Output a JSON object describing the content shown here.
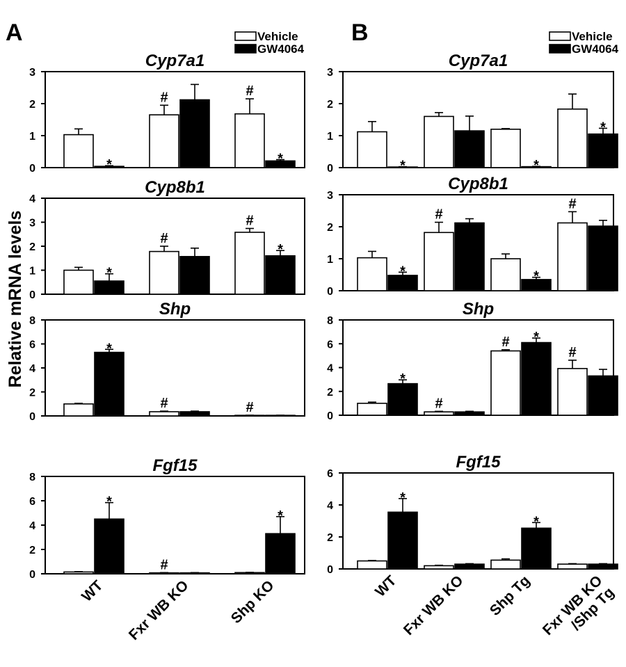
{
  "figure": {
    "ylabel": "Relative mRNA levels",
    "colors": {
      "vehicle": "#ffffff",
      "gw4064": "#000000",
      "stroke": "#000000"
    }
  },
  "panels": [
    {
      "id": "A",
      "letter": "A",
      "legend": [
        {
          "label": "Vehicle",
          "fill": "#ffffff"
        },
        {
          "label": "GW4064",
          "fill": "#000000"
        }
      ],
      "categories": [
        "WT",
        "Fxr WB KO",
        "Shp KO"
      ]
    },
    {
      "id": "B",
      "letter": "B",
      "legend": [
        {
          "label": "Vehicle",
          "fill": "#ffffff"
        },
        {
          "label": "GW4064",
          "fill": "#000000"
        }
      ],
      "categories": [
        "WT",
        "Fxr WB KO",
        "Shp Tg",
        "Fxr WB KO /Shp Tg"
      ]
    }
  ],
  "chart_data": [
    {
      "panel": "A",
      "type": "bar",
      "title": "Cyp7a1",
      "ylim": [
        0,
        3
      ],
      "yticks": [
        0,
        1,
        2,
        3
      ],
      "categories": [
        "WT",
        "Fxr WB KO",
        "Shp KO"
      ],
      "series": [
        {
          "name": "Vehicle",
          "values": [
            1.03,
            1.65,
            1.68
          ],
          "errors": [
            0.18,
            0.3,
            0.47
          ],
          "marks": [
            "",
            "#",
            "#"
          ]
        },
        {
          "name": "GW4064",
          "values": [
            0.04,
            2.12,
            0.21
          ],
          "errors": [
            0.02,
            0.48,
            0.04
          ],
          "marks": [
            "*",
            "",
            "*"
          ]
        }
      ]
    },
    {
      "panel": "A",
      "type": "bar",
      "title": "Cyp8b1",
      "ylim": [
        0,
        4
      ],
      "yticks": [
        0,
        1,
        2,
        3,
        4
      ],
      "categories": [
        "WT",
        "Fxr WB KO",
        "Shp KO"
      ],
      "series": [
        {
          "name": "Vehicle",
          "values": [
            1.0,
            1.78,
            2.58
          ],
          "errors": [
            0.12,
            0.22,
            0.16
          ],
          "marks": [
            "",
            "#",
            "#"
          ]
        },
        {
          "name": "GW4064",
          "values": [
            0.55,
            1.57,
            1.6
          ],
          "errors": [
            0.3,
            0.35,
            0.22
          ],
          "marks": [
            "*",
            "",
            "*"
          ]
        }
      ]
    },
    {
      "panel": "A",
      "type": "bar",
      "title": "Shp",
      "ylim": [
        0,
        8
      ],
      "yticks": [
        0,
        2,
        4,
        6,
        8
      ],
      "categories": [
        "WT",
        "Fxr WB KO",
        "Shp KO"
      ],
      "series": [
        {
          "name": "Vehicle",
          "values": [
            1.0,
            0.35,
            0.05
          ],
          "errors": [
            0.05,
            0.05,
            0.01
          ],
          "marks": [
            "",
            "#",
            "#"
          ]
        },
        {
          "name": "GW4064",
          "values": [
            5.3,
            0.35,
            0.05
          ],
          "errors": [
            0.25,
            0.05,
            0.01
          ],
          "marks": [
            "*",
            "",
            ""
          ]
        }
      ]
    },
    {
      "panel": "A",
      "type": "bar",
      "title": "Fgf15",
      "ylim": [
        0,
        8
      ],
      "yticks": [
        0,
        2,
        4,
        6,
        8
      ],
      "categories": [
        "WT",
        "Fxr WB KO",
        "Shp KO"
      ],
      "series": [
        {
          "name": "Vehicle",
          "values": [
            0.15,
            0.08,
            0.1
          ],
          "errors": [
            0.03,
            0.02,
            0.02
          ],
          "marks": [
            "",
            "#",
            ""
          ]
        },
        {
          "name": "GW4064",
          "values": [
            4.5,
            0.08,
            3.3
          ],
          "errors": [
            1.35,
            0.02,
            1.4
          ],
          "marks": [
            "*",
            "",
            "*"
          ]
        }
      ]
    },
    {
      "panel": "B",
      "type": "bar",
      "title": "Cyp7a1",
      "ylim": [
        0,
        3
      ],
      "yticks": [
        0,
        1,
        2,
        3
      ],
      "categories": [
        "WT",
        "Fxr WB KO",
        "Shp Tg",
        "Fxr WB KO /Shp Tg"
      ],
      "series": [
        {
          "name": "Vehicle",
          "values": [
            1.12,
            1.6,
            1.2,
            1.83
          ],
          "errors": [
            0.32,
            0.12,
            0.02,
            0.47
          ],
          "marks": [
            "",
            "",
            "",
            ""
          ]
        },
        {
          "name": "GW4064",
          "values": [
            0.02,
            1.15,
            0.03,
            1.05
          ],
          "errors": [
            0.01,
            0.46,
            0.01,
            0.18
          ],
          "marks": [
            "*",
            "",
            "*",
            "*"
          ]
        }
      ]
    },
    {
      "panel": "B",
      "type": "bar",
      "title": "Cyp8b1",
      "ylim": [
        0,
        3
      ],
      "yticks": [
        0,
        1,
        2,
        3
      ],
      "categories": [
        "WT",
        "Fxr WB KO",
        "Shp Tg",
        "Fxr WB KO /Shp Tg"
      ],
      "series": [
        {
          "name": "Vehicle",
          "values": [
            1.03,
            1.82,
            1.0,
            2.12
          ],
          "errors": [
            0.2,
            0.32,
            0.15,
            0.35
          ],
          "marks": [
            "",
            "#",
            "",
            "#"
          ]
        },
        {
          "name": "GW4064",
          "values": [
            0.48,
            2.12,
            0.35,
            2.02
          ],
          "errors": [
            0.1,
            0.13,
            0.07,
            0.18
          ],
          "marks": [
            "*",
            "",
            "*",
            ""
          ]
        }
      ]
    },
    {
      "panel": "B",
      "type": "bar",
      "title": "Shp",
      "ylim": [
        0,
        8
      ],
      "yticks": [
        0,
        2,
        4,
        6,
        8
      ],
      "categories": [
        "WT",
        "Fxr WB KO",
        "Shp Tg",
        "Fxr WB KO /Shp Tg"
      ],
      "series": [
        {
          "name": "Vehicle",
          "values": [
            1.0,
            0.28,
            5.4,
            3.92
          ],
          "errors": [
            0.1,
            0.05,
            0.1,
            0.7
          ],
          "marks": [
            "",
            "#",
            "#",
            "#"
          ]
        },
        {
          "name": "GW4064",
          "values": [
            2.65,
            0.28,
            6.1,
            3.3
          ],
          "errors": [
            0.32,
            0.05,
            0.38,
            0.55
          ],
          "marks": [
            "*",
            "",
            "*",
            ""
          ]
        }
      ]
    },
    {
      "panel": "B",
      "type": "bar",
      "title": "Fgf15",
      "ylim": [
        0,
        6
      ],
      "yticks": [
        0,
        2,
        4,
        6
      ],
      "categories": [
        "WT",
        "Fxr WB KO",
        "Shp Tg",
        "Fxr WB KO /Shp Tg"
      ],
      "series": [
        {
          "name": "Vehicle",
          "values": [
            0.5,
            0.2,
            0.55,
            0.3
          ],
          "errors": [
            0.03,
            0.03,
            0.08,
            0.03
          ],
          "marks": [
            "",
            "",
            "",
            ""
          ]
        },
        {
          "name": "GW4064",
          "values": [
            3.55,
            0.3,
            2.55,
            0.3
          ],
          "errors": [
            0.85,
            0.03,
            0.35,
            0.03
          ],
          "marks": [
            "*",
            "",
            "*",
            ""
          ]
        }
      ]
    }
  ]
}
